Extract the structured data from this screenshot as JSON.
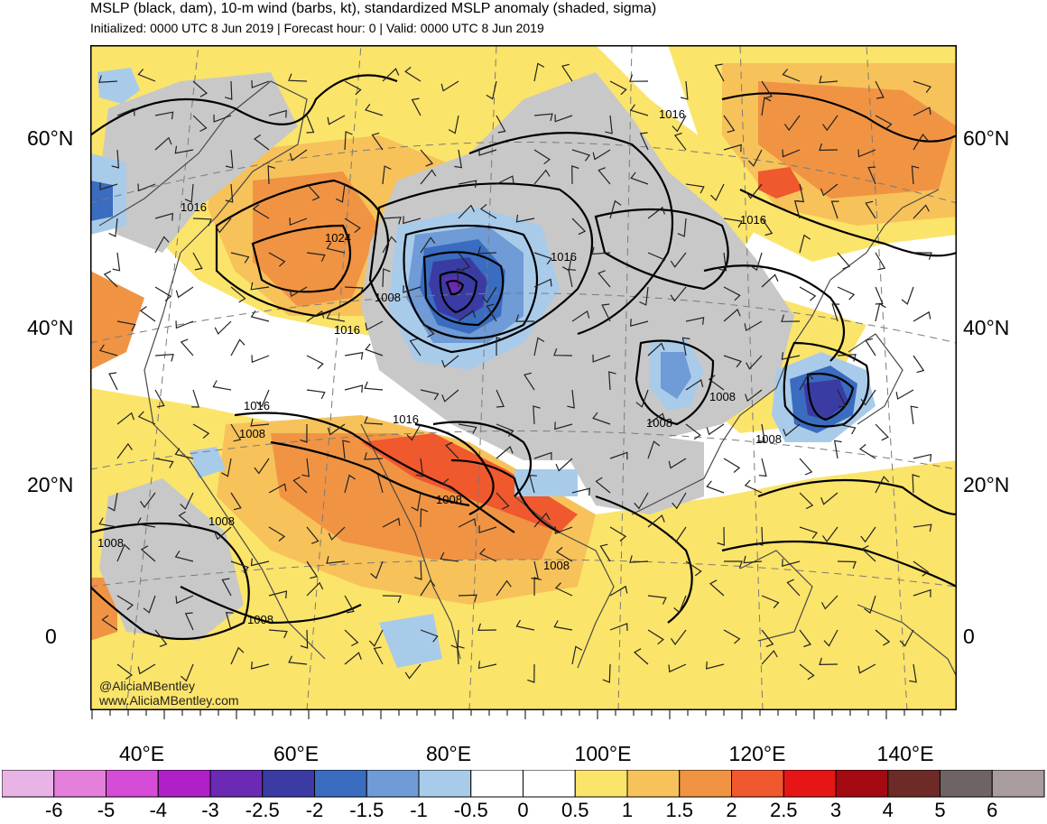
{
  "header": {
    "title": "MSLP (black, dam), 10-m wind (barbs, kt), standardized MSLP anomaly (shaded, sigma)",
    "subtitle": "Initialized: 0000 UTC 8 Jun 2019 | Forecast hour: 0 | Valid: 0000 UTC 8 Jun 2019"
  },
  "map": {
    "lat_labels": [
      "60°N",
      "40°N",
      "20°N",
      "0"
    ],
    "lon_labels": [
      "40°E",
      "60°E",
      "80°E",
      "100°E",
      "120°E",
      "140°E"
    ],
    "isobar_labels": [
      "1016",
      "1024",
      "1016",
      "1008",
      "1016",
      "1016",
      "1016",
      "1008",
      "1008",
      "1008",
      "1008",
      "1008",
      "1016",
      "1008",
      "1016",
      "1008",
      "1008",
      "1008",
      "1008"
    ],
    "credit": [
      "@AliciaMBentley",
      "www.AliciaMBentley.com"
    ],
    "colors": {
      "land_gray": "#c8c8c8",
      "map_border": "#000000"
    }
  },
  "colorbar": {
    "tick_labels": [
      "-6",
      "-5",
      "-4",
      "-3",
      "-2.5",
      "-2",
      "-1.5",
      "-1",
      "-0.5",
      "0",
      "0.5",
      "1",
      "1.5",
      "2",
      "2.5",
      "3",
      "4",
      "5",
      "6"
    ],
    "colors": [
      "#e8b4e6",
      "#e47fdc",
      "#d54dd6",
      "#b020c8",
      "#6a2ab4",
      "#3a3ca4",
      "#3a6cc0",
      "#6f9bd6",
      "#a9cbea",
      "#ffffff",
      "#ffffff",
      "#fbe46a",
      "#f7c25a",
      "#f09444",
      "#f0582e",
      "#e71616",
      "#a30a12",
      "#6d2a26",
      "#6e6464",
      "#a89c9c"
    ]
  }
}
